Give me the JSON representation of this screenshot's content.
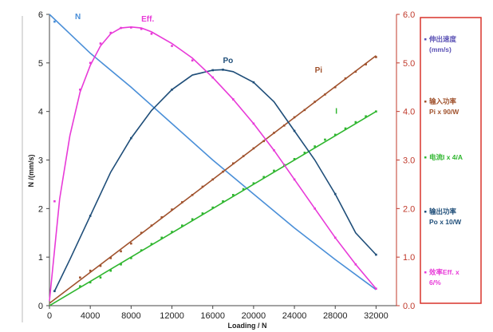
{
  "chart_data": {
    "type": "line",
    "title": "",
    "xlabel": "Loading  / N",
    "ylabel": "N /(mm/s)",
    "xlim": [
      0,
      34000
    ],
    "ylim": [
      0,
      6
    ],
    "y2lim": [
      0,
      6
    ],
    "x_ticks": [
      "0",
      "4000",
      "8000",
      "12000",
      "16000",
      "20000",
      "24000",
      "28000",
      "32000"
    ],
    "y_ticks": [
      "0",
      "1",
      "2",
      "3",
      "4",
      "5",
      "6"
    ],
    "y2_ticks": [
      "0.0",
      "1.0",
      "2.0",
      "3.0",
      "4.0",
      "5.0",
      "6.0"
    ],
    "grid": false,
    "series": [
      {
        "id": "N",
        "name": "N",
        "label": "N",
        "color": "#4a8fd8",
        "line": {
          "x": [
            0,
            2000,
            4000,
            8000,
            12000,
            16000,
            20000,
            24000,
            28000,
            32000
          ],
          "y": [
            6.0,
            5.6,
            5.2,
            4.5,
            3.75,
            3.0,
            2.3,
            1.6,
            0.95,
            0.33
          ]
        },
        "points": {
          "x": [
            500
          ],
          "y": [
            5.85
          ]
        }
      },
      {
        "id": "Pi",
        "name": "Pi",
        "label": "Pi",
        "color": "#a0522d",
        "line": {
          "x": [
            0,
            32000
          ],
          "y": [
            0.05,
            5.15
          ]
        },
        "points": {
          "x": [
            3000,
            4000,
            5000,
            6000,
            7000,
            8000,
            9000,
            10000,
            11000,
            12000,
            13000,
            14000,
            15000,
            16000,
            17000,
            18000,
            19000,
            20000,
            21000,
            22000,
            23000,
            24000,
            25000,
            26000,
            27000,
            28000,
            29000,
            30000,
            31000,
            32000
          ],
          "y": [
            0.58,
            0.72,
            0.82,
            0.98,
            1.12,
            1.28,
            1.5,
            1.65,
            1.82,
            1.98,
            2.13,
            2.28,
            2.45,
            2.6,
            2.76,
            2.93,
            3.08,
            3.24,
            3.39,
            3.56,
            3.71,
            3.88,
            4.03,
            4.2,
            4.35,
            4.5,
            4.68,
            4.82,
            4.97,
            5.12
          ]
        }
      },
      {
        "id": "I",
        "name": "I",
        "label": "I",
        "color": "#2fb62f",
        "line": {
          "x": [
            0,
            32000
          ],
          "y": [
            0.0,
            4.0
          ]
        },
        "points": {
          "x": [
            3000,
            4000,
            5000,
            6000,
            7000,
            8000,
            9000,
            10000,
            11000,
            12000,
            13000,
            14000,
            15000,
            16000,
            17000,
            18000,
            19000,
            20000,
            21000,
            22000,
            23000,
            24000,
            25000,
            26000,
            27000,
            28000,
            29000,
            30000,
            31000,
            32000
          ],
          "y": [
            0.4,
            0.48,
            0.58,
            0.72,
            0.85,
            0.98,
            1.14,
            1.27,
            1.4,
            1.52,
            1.65,
            1.78,
            1.9,
            2.02,
            2.15,
            2.28,
            2.4,
            2.52,
            2.65,
            2.78,
            2.9,
            3.02,
            3.15,
            3.28,
            3.42,
            3.52,
            3.65,
            3.78,
            3.9,
            4.0
          ]
        }
      },
      {
        "id": "Po",
        "name": "Po",
        "label": "Po",
        "color": "#1f4e79",
        "line": {
          "x": [
            500,
            2000,
            4000,
            6000,
            8000,
            10000,
            12000,
            14000,
            16000,
            17000,
            18000,
            20000,
            22000,
            24000,
            26000,
            28000,
            30000,
            32000
          ],
          "y": [
            0.3,
            0.95,
            1.85,
            2.75,
            3.45,
            4.02,
            4.45,
            4.75,
            4.85,
            4.86,
            4.82,
            4.6,
            4.2,
            3.6,
            3.0,
            2.3,
            1.5,
            1.05
          ]
        },
        "points": {
          "x": [
            500,
            4000,
            8000,
            12000,
            16000,
            17000,
            20000,
            24000,
            28000,
            32000
          ],
          "y": [
            0.3,
            1.85,
            3.45,
            4.45,
            4.85,
            4.86,
            4.6,
            3.6,
            2.3,
            1.05
          ]
        }
      },
      {
        "id": "Eff",
        "name": "Eff.",
        "label": "Eff.",
        "color": "#e83ad8",
        "line": {
          "x": [
            0,
            1000,
            2000,
            3000,
            4000,
            5000,
            6000,
            7000,
            8000,
            9000,
            10000,
            12000,
            14000,
            16000,
            18000,
            20000,
            22000,
            24000,
            26000,
            28000,
            30000,
            32000
          ],
          "y": [
            0.1,
            2.2,
            3.5,
            4.4,
            4.95,
            5.35,
            5.6,
            5.72,
            5.74,
            5.72,
            5.64,
            5.4,
            5.1,
            4.7,
            4.25,
            3.75,
            3.2,
            2.6,
            2.0,
            1.4,
            0.85,
            0.35
          ]
        },
        "points": {
          "x": [
            500,
            3000,
            4000,
            5000,
            6000,
            7000,
            8000,
            9000,
            10000,
            12000,
            14000,
            16000,
            18000,
            20000,
            22000,
            24000,
            26000,
            28000,
            30000,
            32000
          ],
          "y": [
            2.15,
            4.45,
            5.0,
            5.4,
            5.62,
            5.72,
            5.73,
            5.7,
            5.6,
            5.35,
            5.05,
            4.7,
            4.25,
            3.75,
            3.2,
            2.6,
            2.0,
            1.4,
            0.85,
            0.35
          ]
        }
      }
    ],
    "legend_position": "right",
    "legend": [
      {
        "line1": "伸出速度",
        "line2": "(mm/s)",
        "color": "#5b52b5"
      },
      {
        "line1": "输入功率",
        "line2": "Pi x 90/W",
        "color": "#a0522d"
      },
      {
        "line1": "电流I x 4/A",
        "line2": "",
        "color": "#2fb62f"
      },
      {
        "line1": "输出功率",
        "line2": "Po x 10/W",
        "color": "#1f4e79"
      },
      {
        "line1": "效率Eff. x",
        "line2": "6/%",
        "color": "#e83ad8"
      }
    ]
  }
}
